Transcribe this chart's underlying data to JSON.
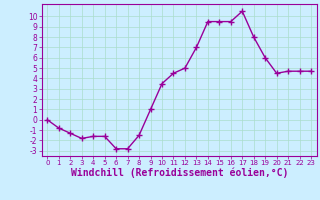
{
  "x": [
    0,
    1,
    2,
    3,
    4,
    5,
    6,
    7,
    8,
    9,
    10,
    11,
    12,
    13,
    14,
    15,
    16,
    17,
    18,
    19,
    20,
    21,
    22,
    23
  ],
  "y": [
    0.0,
    -0.8,
    -1.3,
    -1.8,
    -1.6,
    -1.6,
    -2.8,
    -2.8,
    -1.5,
    1.0,
    3.5,
    4.5,
    5.0,
    7.0,
    9.5,
    9.5,
    9.5,
    10.5,
    8.0,
    6.0,
    4.5,
    4.7,
    4.7,
    4.7
  ],
  "line_color": "#990099",
  "marker": "+",
  "marker_size": 4,
  "bg_color": "#cceeff",
  "grid_color": "#aaddcc",
  "xlabel": "Windchill (Refroidissement éolien,°C)",
  "xlabel_fontsize": 7,
  "ylim": [
    -3.5,
    11.2
  ],
  "xlim": [
    -0.5,
    23.5
  ],
  "xticks": [
    0,
    1,
    2,
    3,
    4,
    5,
    6,
    7,
    8,
    9,
    10,
    11,
    12,
    13,
    14,
    15,
    16,
    17,
    18,
    19,
    20,
    21,
    22,
    23
  ],
  "yticks": [
    -3,
    -2,
    -1,
    0,
    1,
    2,
    3,
    4,
    5,
    6,
    7,
    8,
    9,
    10
  ]
}
